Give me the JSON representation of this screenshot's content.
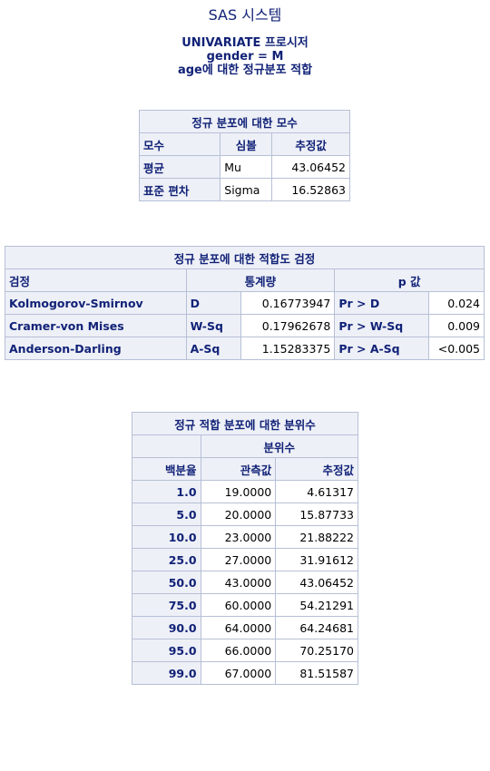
{
  "system_title": "SAS 시스템",
  "procedure": {
    "line1": "UNIVARIATE 프로시저",
    "line2": "gender = M",
    "line3": "age에 대한 정규분포 적합"
  },
  "params_table": {
    "title": "정규 분포에 대한 모수",
    "headers": [
      "모수",
      "심볼",
      "추정값"
    ],
    "rows": [
      [
        "평균",
        "Mu",
        "43.06452"
      ],
      [
        "표준 편차",
        "Sigma",
        "16.52863"
      ]
    ]
  },
  "gof_table": {
    "title": "정규 분포에 대한 적합도 검정",
    "headers": [
      "검정",
      "통계량",
      "p 값"
    ],
    "rows": [
      [
        "Kolmogorov-Smirnov",
        "D",
        "0.16773947",
        "Pr > D",
        "0.024"
      ],
      [
        "Cramer-von Mises",
        "W-Sq",
        "0.17962678",
        "Pr > W-Sq",
        "0.009"
      ],
      [
        "Anderson-Darling",
        "A-Sq",
        "1.15283375",
        "Pr > A-Sq",
        "<0.005"
      ]
    ]
  },
  "quantiles_table": {
    "title": "정규 적합 분포에 대한 분위수",
    "group_header": "분위수",
    "headers": [
      "백분율",
      "관측값",
      "추정값"
    ],
    "rows": [
      [
        "1.0",
        "19.0000",
        "4.61317"
      ],
      [
        "5.0",
        "20.0000",
        "15.87733"
      ],
      [
        "10.0",
        "23.0000",
        "21.88222"
      ],
      [
        "25.0",
        "27.0000",
        "31.91612"
      ],
      [
        "50.0",
        "43.0000",
        "43.06452"
      ],
      [
        "75.0",
        "60.0000",
        "54.21291"
      ],
      [
        "90.0",
        "64.0000",
        "64.24681"
      ],
      [
        "95.0",
        "66.0000",
        "70.25170"
      ],
      [
        "99.0",
        "67.0000",
        "81.51587"
      ]
    ]
  }
}
